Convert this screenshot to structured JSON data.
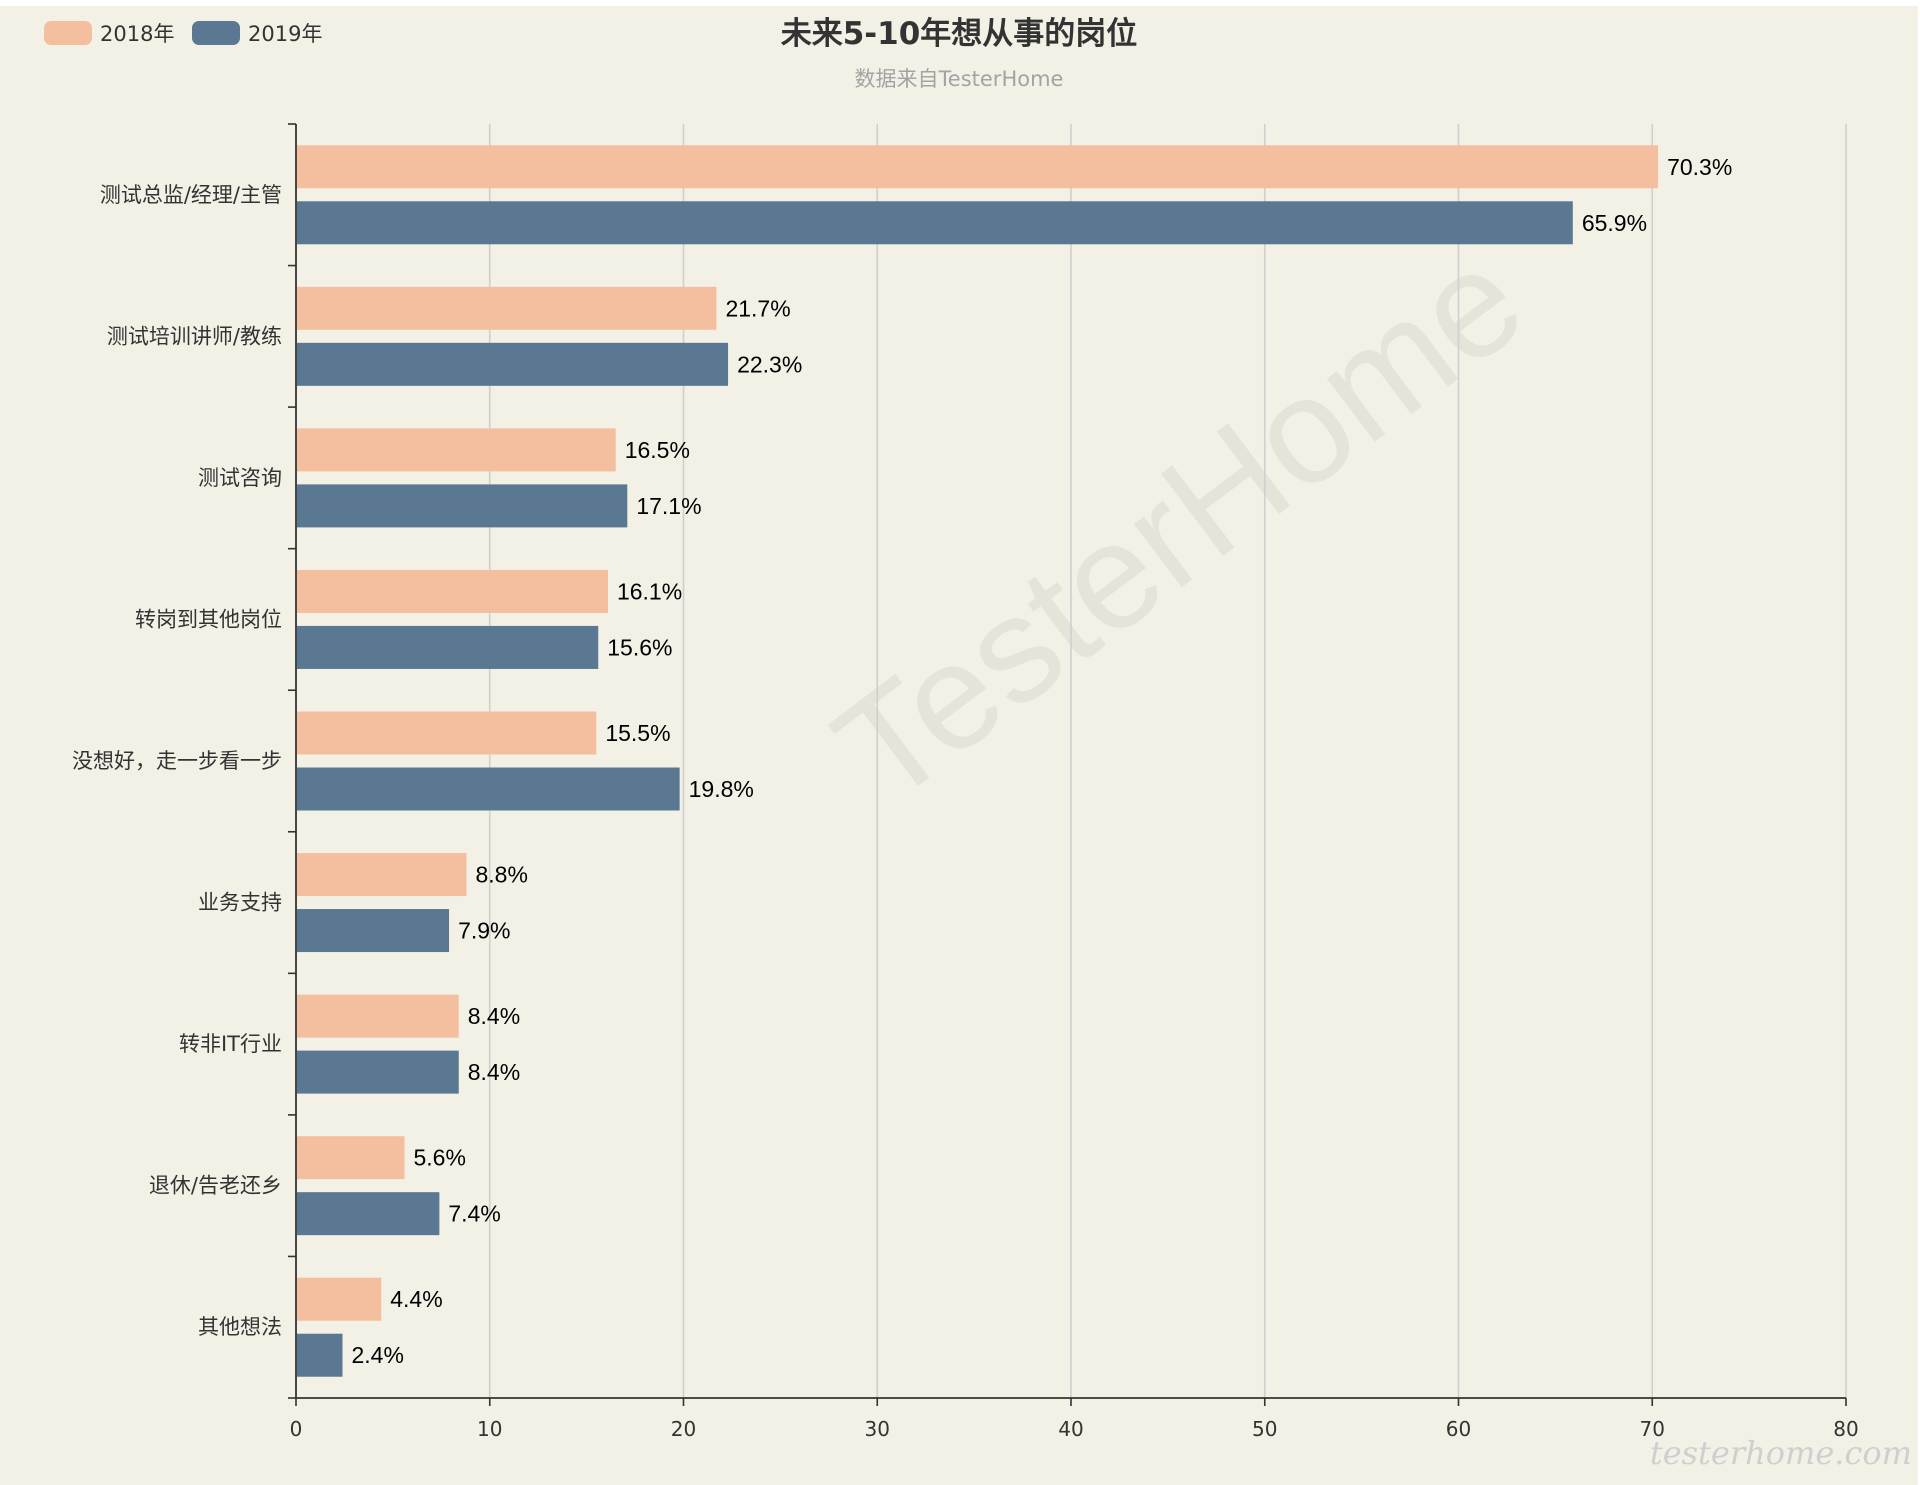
{
  "chart_data": {
    "type": "bar",
    "orientation": "horizontal",
    "title": "未来5-10年想从事的岗位",
    "subtitle": "数据来自TesterHome",
    "categories": [
      "测试总监/经理/主管",
      "测试培训讲师/教练",
      "测试咨询",
      "转岗到其他岗位",
      "没想好，走一步看一步",
      "业务支持",
      "转非IT行业",
      "退休/告老还乡",
      "其他想法"
    ],
    "series": [
      {
        "name": "2018年",
        "color": "#f4bf9f",
        "values": [
          70.3,
          21.7,
          16.5,
          16.1,
          15.5,
          8.8,
          8.4,
          5.6,
          4.4
        ],
        "labels": [
          "70.3%",
          "21.7%",
          "16.5%",
          "16.1%",
          "15.5%",
          "8.8%",
          "8.4%",
          "5.6%",
          "4.4%"
        ]
      },
      {
        "name": "2019年",
        "color": "#5a7891",
        "values": [
          65.9,
          22.3,
          17.1,
          15.6,
          19.8,
          7.9,
          8.4,
          7.4,
          2.4
        ],
        "labels": [
          "65.9%",
          "22.3%",
          "17.1%",
          "15.6%",
          "19.8%",
          "7.9%",
          "8.4%",
          "7.4%",
          "2.4%"
        ]
      }
    ],
    "xlim": [
      0,
      80
    ],
    "xticks": [
      0,
      10,
      20,
      30,
      40,
      50,
      60,
      70,
      80
    ],
    "xlabel": "",
    "ylabel": "",
    "grid": "vertical",
    "legend": "top-left",
    "watermark": "TesterHome",
    "corner_watermark": "testerhome.com"
  }
}
